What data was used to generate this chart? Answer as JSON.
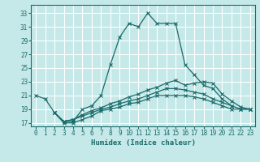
{
  "xlabel": "Humidex (Indice chaleur)",
  "background_color": "#c5e8e8",
  "grid_color": "#ffffff",
  "line_color": "#1a6b6b",
  "xlim": [
    -0.5,
    23.5
  ],
  "ylim": [
    16.5,
    34.2
  ],
  "xticks": [
    0,
    1,
    2,
    3,
    4,
    5,
    6,
    7,
    8,
    9,
    10,
    11,
    12,
    13,
    14,
    15,
    16,
    17,
    18,
    19,
    20,
    21,
    22,
    23
  ],
  "yticks": [
    17,
    19,
    21,
    23,
    25,
    27,
    29,
    31,
    33
  ],
  "series": [
    {
      "x": [
        0,
        1,
        2,
        3,
        4,
        5,
        6,
        7,
        8,
        9,
        10,
        11,
        12,
        13,
        14,
        15,
        16,
        17,
        18,
        19,
        20,
        21
      ],
      "y": [
        21,
        20.5,
        18.5,
        17.2,
        17.2,
        19.0,
        19.5,
        21.0,
        25.5,
        29.5,
        31.5,
        31.0,
        33.0,
        31.5,
        31.5,
        31.5,
        25.5,
        24.0,
        22.5,
        22.0,
        20.5,
        19.5
      ]
    },
    {
      "x": [
        2,
        3,
        4,
        5,
        6,
        7,
        8,
        9,
        10,
        11,
        12,
        13,
        14,
        15,
        16,
        17,
        18,
        19,
        20,
        21,
        22,
        23
      ],
      "y": [
        18.5,
        17.2,
        17.5,
        18.2,
        18.8,
        19.2,
        19.8,
        20.2,
        20.8,
        21.2,
        21.8,
        22.2,
        22.8,
        23.2,
        22.5,
        22.8,
        23.0,
        22.8,
        21.2,
        20.2,
        19.3,
        19.0
      ]
    },
    {
      "x": [
        2,
        3,
        4,
        5,
        6,
        7,
        8,
        9,
        10,
        11,
        12,
        13,
        14,
        15,
        16,
        17,
        18,
        19,
        20,
        21,
        22,
        23
      ],
      "y": [
        18.5,
        17.2,
        17.5,
        18.0,
        18.5,
        19.0,
        19.3,
        19.8,
        20.2,
        20.5,
        21.0,
        21.5,
        22.0,
        22.0,
        21.8,
        21.5,
        21.2,
        20.5,
        20.0,
        19.5,
        19.0,
        19.0
      ]
    },
    {
      "x": [
        2,
        3,
        4,
        5,
        6,
        7,
        8,
        9,
        10,
        11,
        12,
        13,
        14,
        15,
        16,
        17,
        18,
        19,
        20,
        21,
        22,
        23
      ],
      "y": [
        18.5,
        17.0,
        17.0,
        17.5,
        18.0,
        18.8,
        19.0,
        19.3,
        19.8,
        20.0,
        20.5,
        21.0,
        21.0,
        21.0,
        21.0,
        20.8,
        20.5,
        20.0,
        19.5,
        19.0,
        19.0,
        19.0
      ]
    }
  ]
}
